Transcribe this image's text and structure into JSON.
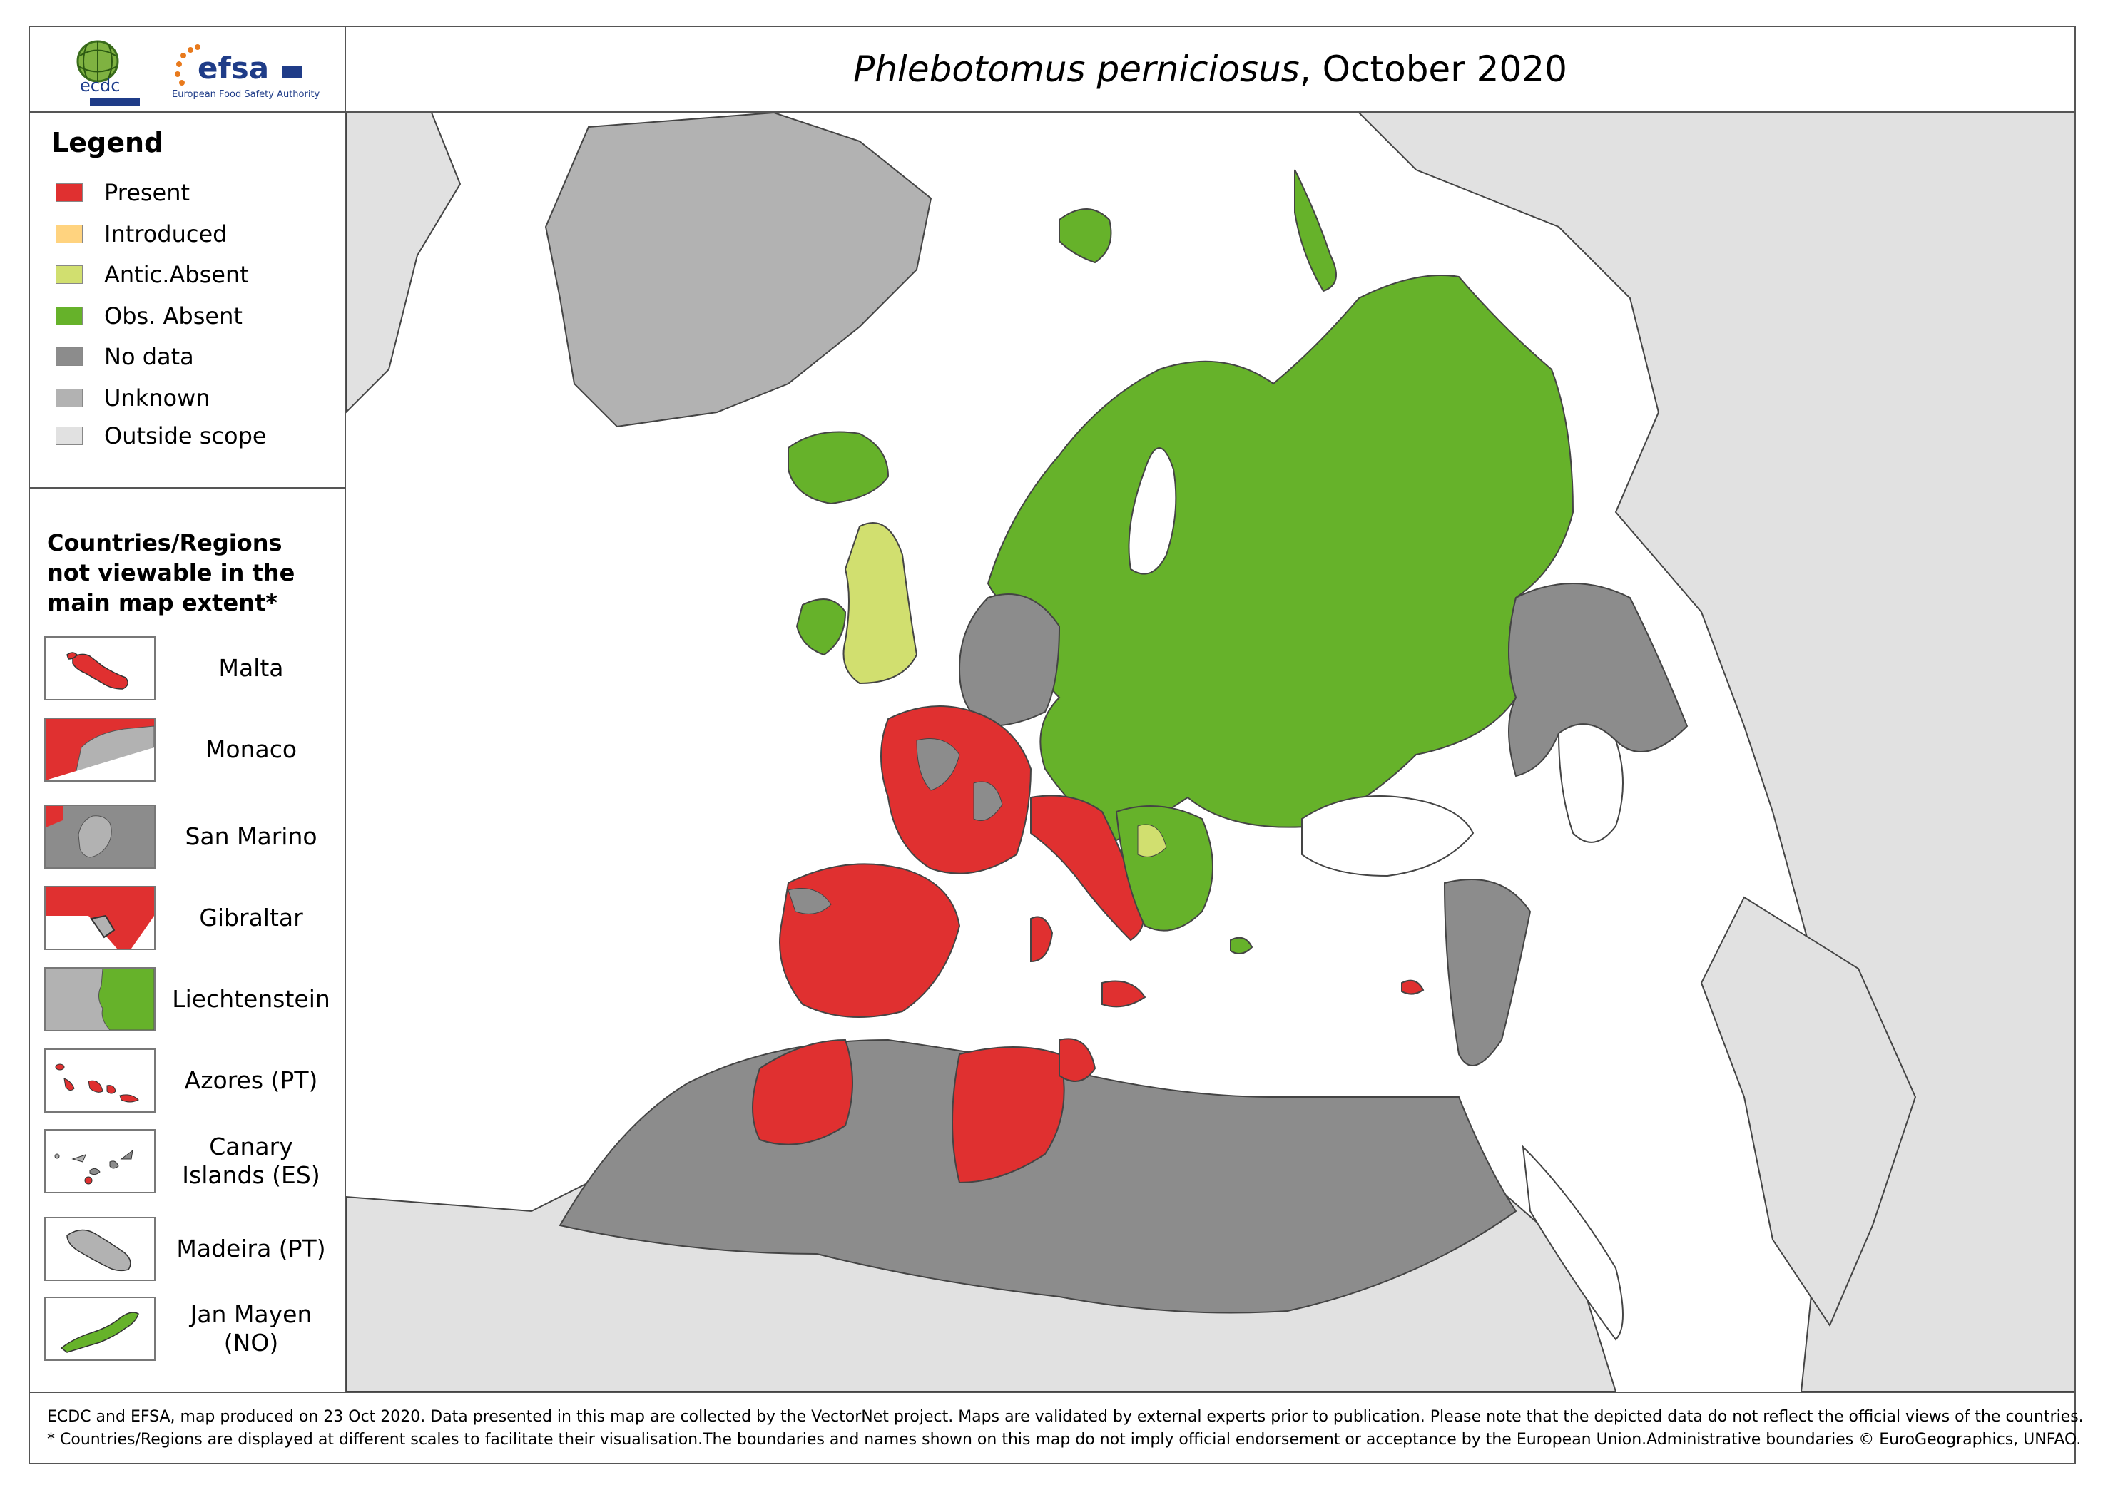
{
  "header": {
    "title_species": "Phlebotomus perniciosus",
    "title_rest": ", October 2020",
    "logos": {
      "ecdc": "ecdc",
      "efsa": "efsa",
      "efsa_sub": "European Food Safety Authority"
    }
  },
  "legend": {
    "heading": "Legend",
    "items": [
      {
        "label": "Present",
        "color": "#e03030"
      },
      {
        "label": "Introduced",
        "color": "#ffd37f"
      },
      {
        "label": "Antic.Absent",
        "color": "#d1df6f"
      },
      {
        "label": "Obs. Absent",
        "color": "#66b22a"
      },
      {
        "label": "No data",
        "color": "#8c8c8c"
      },
      {
        "label": "Unknown",
        "color": "#b2b2b2"
      },
      {
        "label": "Outside scope",
        "color": "#e1e1e1"
      }
    ]
  },
  "insets": {
    "heading": "Countries/Regions not viewable in the main map extent*",
    "items": [
      {
        "label": "Malta",
        "icon": "malta-inset"
      },
      {
        "label": "Monaco",
        "icon": "monaco-inset"
      },
      {
        "label": "San Marino",
        "icon": "san-marino-inset"
      },
      {
        "label": "Gibraltar",
        "icon": "gibraltar-inset"
      },
      {
        "label": "Liechtenstein",
        "icon": "liechtenstein-inset"
      },
      {
        "label": "Azores (PT)",
        "icon": "azores-inset"
      },
      {
        "label": "Canary Islands (ES)",
        "icon": "canary-islands-inset"
      },
      {
        "label": "Madeira (PT)",
        "icon": "madeira-inset"
      },
      {
        "label": "Jan Mayen (NO)",
        "icon": "jan-mayen-inset"
      }
    ]
  },
  "footer": {
    "line1": "ECDC and EFSA, map produced on 23 Oct 2020. Data presented in this map are collected by the VectorNet project. Maps are validated by external experts prior to publication. Please note that the depicted data do not reflect the official views of the countries.",
    "line2": "* Countries/Regions are displayed at different scales to facilitate their visualisation.The boundaries and names shown on this map do not imply official endorsement or acceptance by the European Union.Administrative boundaries © EuroGeographics, UNFAO."
  }
}
